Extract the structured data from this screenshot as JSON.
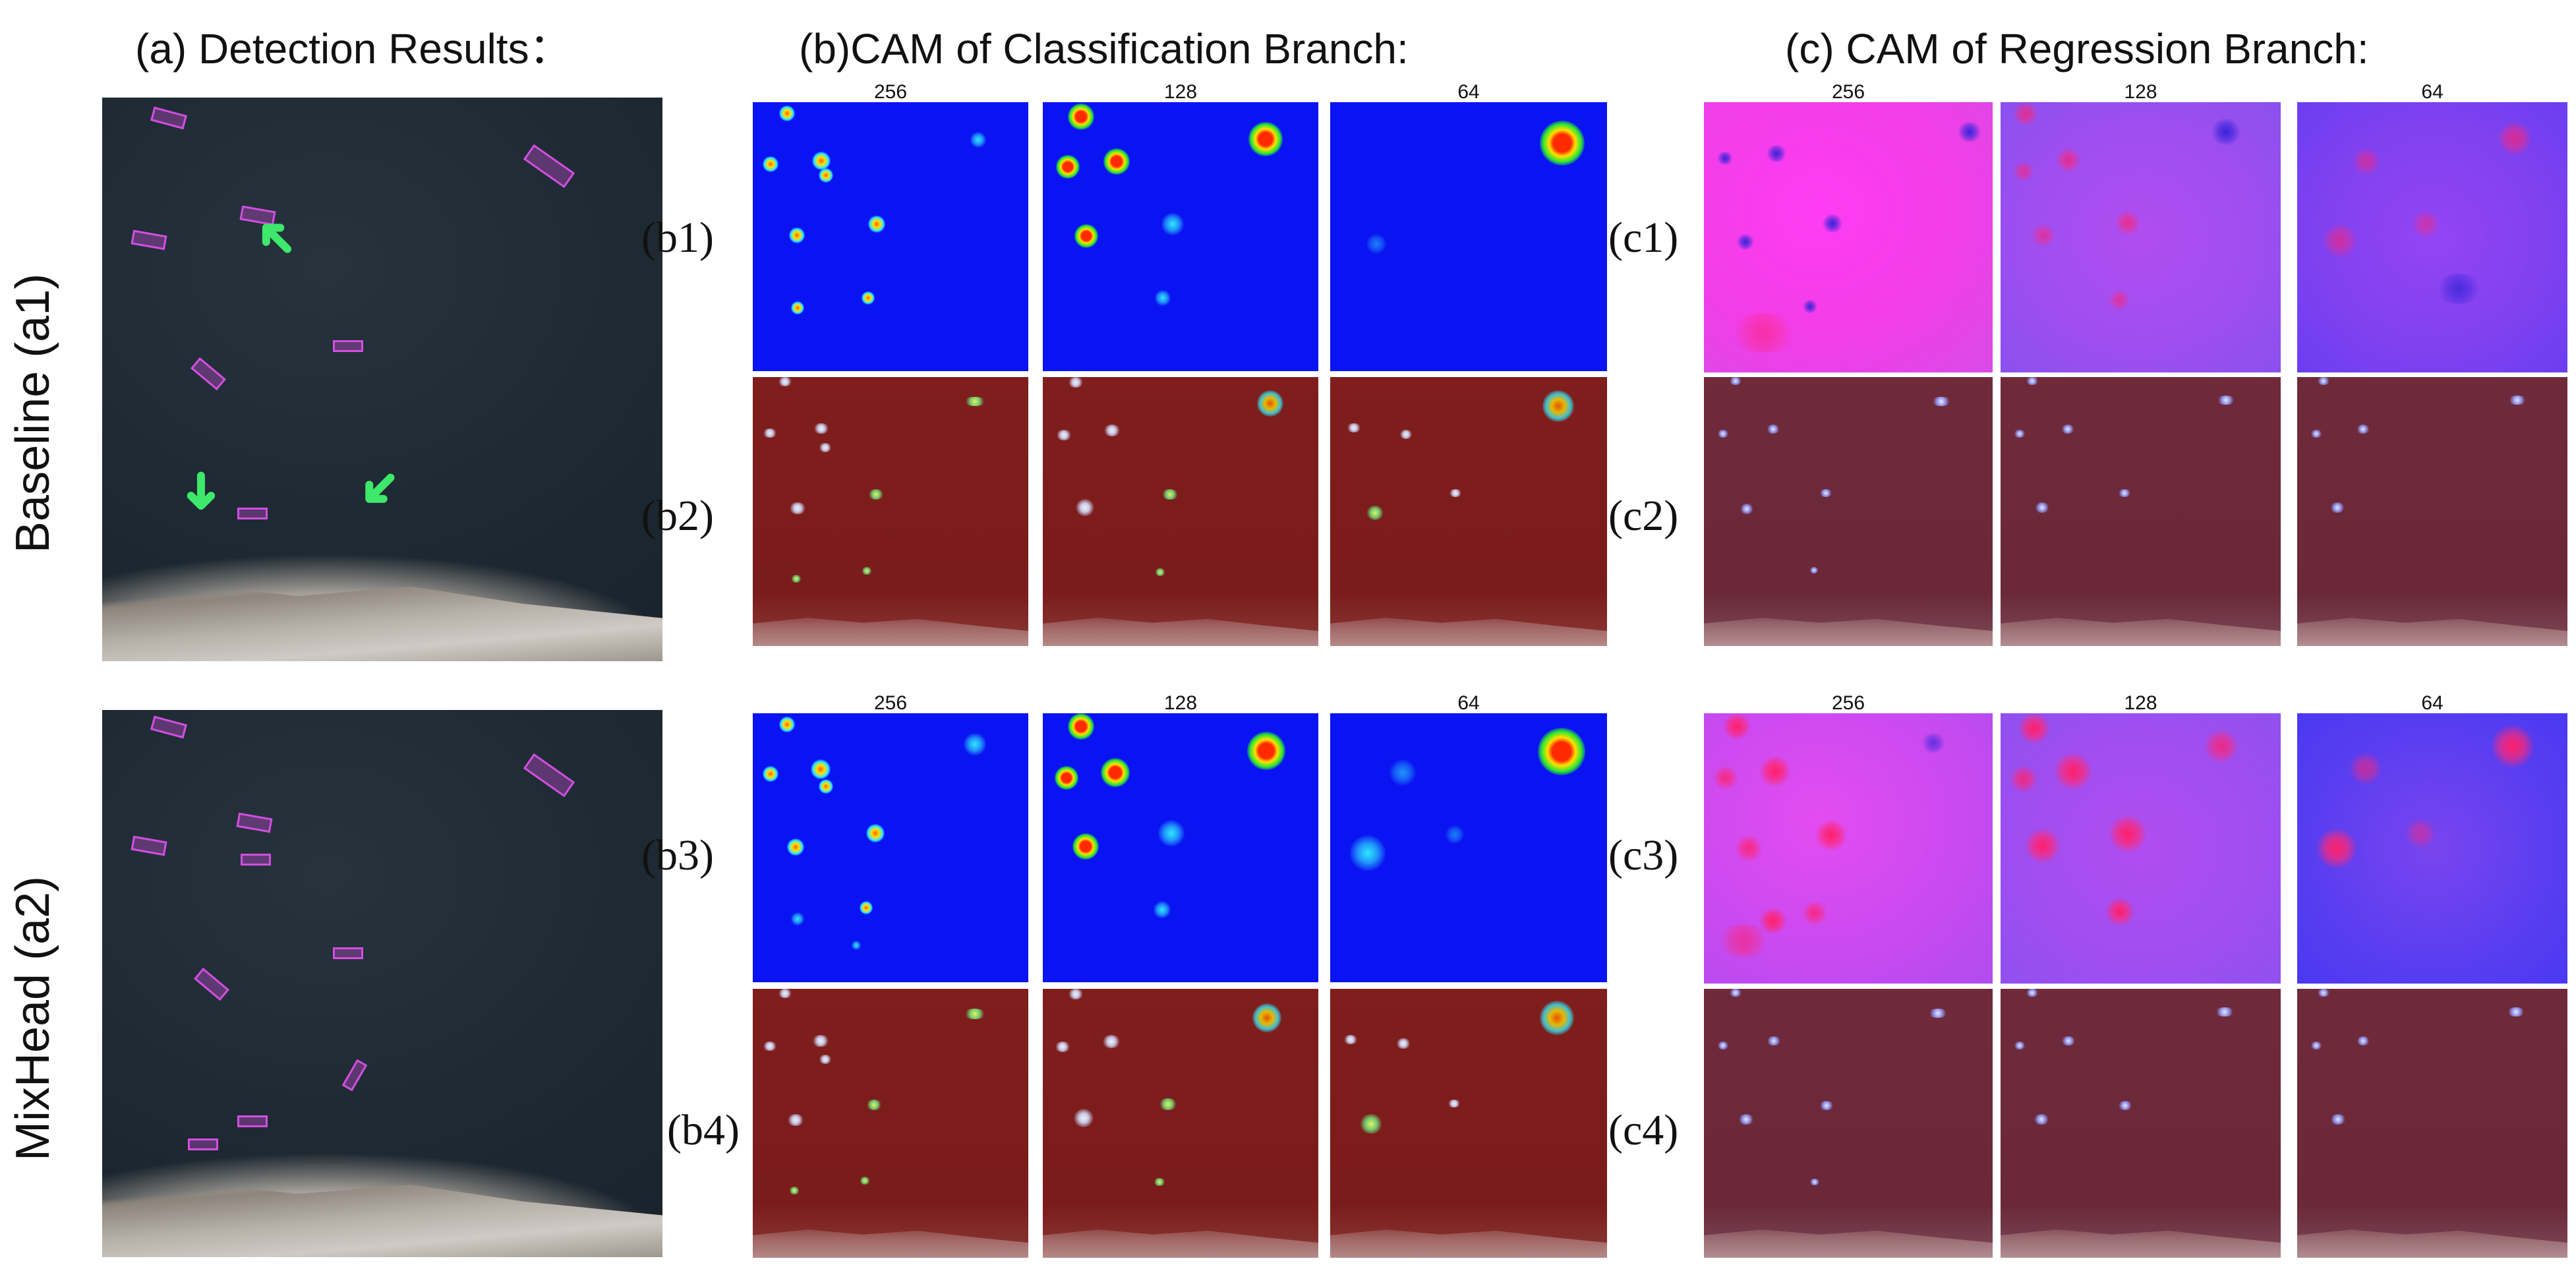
{
  "titles": {
    "a": "(a) Detection Results：",
    "b": "(b)CAM of Classification Branch:",
    "c": "(c) CAM of Regression Branch:"
  },
  "row_labels": {
    "baseline": "Baseline (a1)",
    "mixhead": "MixHead (a2)"
  },
  "sub_labels": {
    "b1": "(b1)",
    "b2": "(b2)",
    "b3": "(b3)",
    "b4": "(b4)",
    "c1": "(c1)",
    "c2": "(c2)",
    "c3": "(c3)",
    "c4": "(c4)"
  },
  "scales": [
    "256",
    "128",
    "64"
  ],
  "colors": {
    "box": "#d24ee0",
    "arrow": "#3ee86a",
    "cam_blue": "#0a14f2",
    "cam_red": "#7f1e1c",
    "cam_magenta": "#f23de8",
    "cam_violet": "#8041f0"
  }
}
